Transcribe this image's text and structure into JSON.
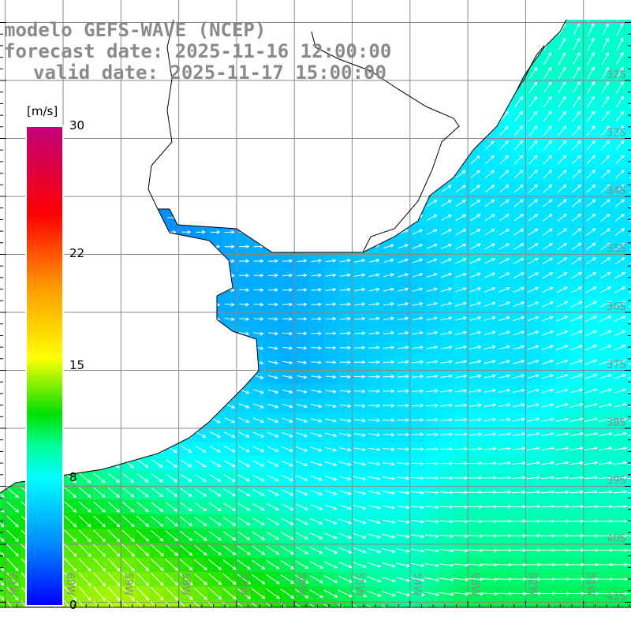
{
  "header": {
    "model": "modelo GEFS-WAVE (NCEP)",
    "forecast": "forecast date: 2025-11-16 12:00:00",
    "valid": "valid date: 2025-11-17 15:00:00"
  },
  "colorbar": {
    "unit": "[m/s]",
    "ticks": [
      {
        "value": 30,
        "label": "30"
      },
      {
        "value": 22,
        "label": "22"
      },
      {
        "value": 15,
        "label": "15"
      },
      {
        "value": 8,
        "label": "8"
      },
      {
        "value": 0,
        "label": "0"
      }
    ],
    "min": 0,
    "max": 30,
    "stops": [
      [
        0,
        "#0000ff"
      ],
      [
        4,
        "#0090ff"
      ],
      [
        8,
        "#00ffff"
      ],
      [
        10,
        "#00ff99"
      ],
      [
        12,
        "#00e000"
      ],
      [
        15.5,
        "#ffff00"
      ],
      [
        20,
        "#ff9900"
      ],
      [
        24.5,
        "#ff0000"
      ],
      [
        30,
        "#c0007a"
      ]
    ]
  },
  "axes": {
    "lon_labels": [
      {
        "lon": 61,
        "label": "61W"
      },
      {
        "lon": 60,
        "label": "60W"
      },
      {
        "lon": 59,
        "label": "59W"
      },
      {
        "lon": 58,
        "label": "58W"
      },
      {
        "lon": 57,
        "label": "57W"
      },
      {
        "lon": 56,
        "label": "56W"
      },
      {
        "lon": 55,
        "label": "55W"
      },
      {
        "lon": 54,
        "label": "54W"
      },
      {
        "lon": 53,
        "label": "53W"
      },
      {
        "lon": 52,
        "label": "52W"
      },
      {
        "lon": 51,
        "label": "51W"
      }
    ],
    "lat_labels": [
      {
        "lat": 32,
        "label": "32S"
      },
      {
        "lat": 33,
        "label": "33S"
      },
      {
        "lat": 34,
        "label": "34S"
      },
      {
        "lat": 35,
        "label": "35S"
      },
      {
        "lat": 36,
        "label": "36S"
      },
      {
        "lat": 37,
        "label": "37S"
      },
      {
        "lat": 38,
        "label": "38S"
      },
      {
        "lat": 39,
        "label": "39S"
      },
      {
        "lat": 40,
        "label": "40S"
      },
      {
        "lat": 41,
        "label": "41S"
      }
    ]
  },
  "wind_field": {
    "lats": [
      31,
      32,
      33,
      34,
      35,
      36,
      37,
      38,
      39,
      40,
      41
    ],
    "lons_w": [
      61,
      60,
      59,
      58,
      57,
      56,
      55,
      54,
      53,
      52,
      51
    ],
    "speed_ms": [
      [
        7,
        7,
        7,
        7,
        7,
        7,
        7,
        7,
        8,
        9,
        9
      ],
      [
        7,
        7,
        6,
        6,
        6,
        6,
        7,
        7,
        8,
        9,
        9
      ],
      [
        6,
        6,
        5,
        5,
        5,
        6,
        7,
        7,
        7,
        8,
        8
      ],
      [
        5,
        5,
        4,
        4,
        5,
        6,
        6,
        7,
        7,
        7,
        7
      ],
      [
        5,
        5,
        4,
        4,
        5,
        5,
        6,
        6,
        7,
        7,
        7
      ],
      [
        5,
        5,
        5,
        5,
        5,
        5,
        6,
        6,
        7,
        7,
        8
      ],
      [
        8,
        8,
        7,
        6,
        6,
        5,
        6,
        7,
        7,
        7,
        8
      ],
      [
        9,
        9,
        8,
        7,
        7,
        7,
        7,
        7,
        8,
        8,
        9
      ],
      [
        11,
        11,
        10,
        9,
        9,
        8,
        8,
        8,
        9,
        9,
        9
      ],
      [
        12,
        13,
        13,
        12,
        11,
        10,
        9,
        9,
        10,
        10,
        10
      ],
      [
        13,
        14,
        14.5,
        14,
        13,
        12,
        11,
        10,
        11,
        11,
        11
      ]
    ],
    "direction_deg_ccw_from_east": [
      [
        30,
        30,
        30,
        30,
        30,
        40,
        45,
        50,
        55,
        60,
        65
      ],
      [
        20,
        20,
        20,
        20,
        20,
        30,
        40,
        45,
        50,
        55,
        60
      ],
      [
        10,
        10,
        10,
        10,
        10,
        20,
        30,
        40,
        45,
        50,
        50
      ],
      [
        0,
        0,
        0,
        0,
        5,
        10,
        20,
        30,
        35,
        40,
        40
      ],
      [
        -10,
        -10,
        -5,
        0,
        0,
        5,
        10,
        20,
        25,
        30,
        35
      ],
      [
        -30,
        -30,
        -20,
        -10,
        -5,
        0,
        5,
        10,
        15,
        20,
        25
      ],
      [
        -40,
        -40,
        -35,
        -30,
        -20,
        -10,
        0,
        5,
        10,
        15,
        20
      ],
      [
        -40,
        -40,
        -35,
        -30,
        -25,
        -20,
        -10,
        0,
        5,
        10,
        10
      ],
      [
        -40,
        -40,
        -40,
        -35,
        -30,
        -25,
        -15,
        -5,
        0,
        5,
        5
      ],
      [
        -45,
        -45,
        -45,
        -40,
        -35,
        -30,
        -20,
        -10,
        -5,
        0,
        0
      ],
      [
        -50,
        -50,
        -50,
        -45,
        -40,
        -35,
        -25,
        -15,
        -5,
        0,
        0
      ]
    ]
  }
}
